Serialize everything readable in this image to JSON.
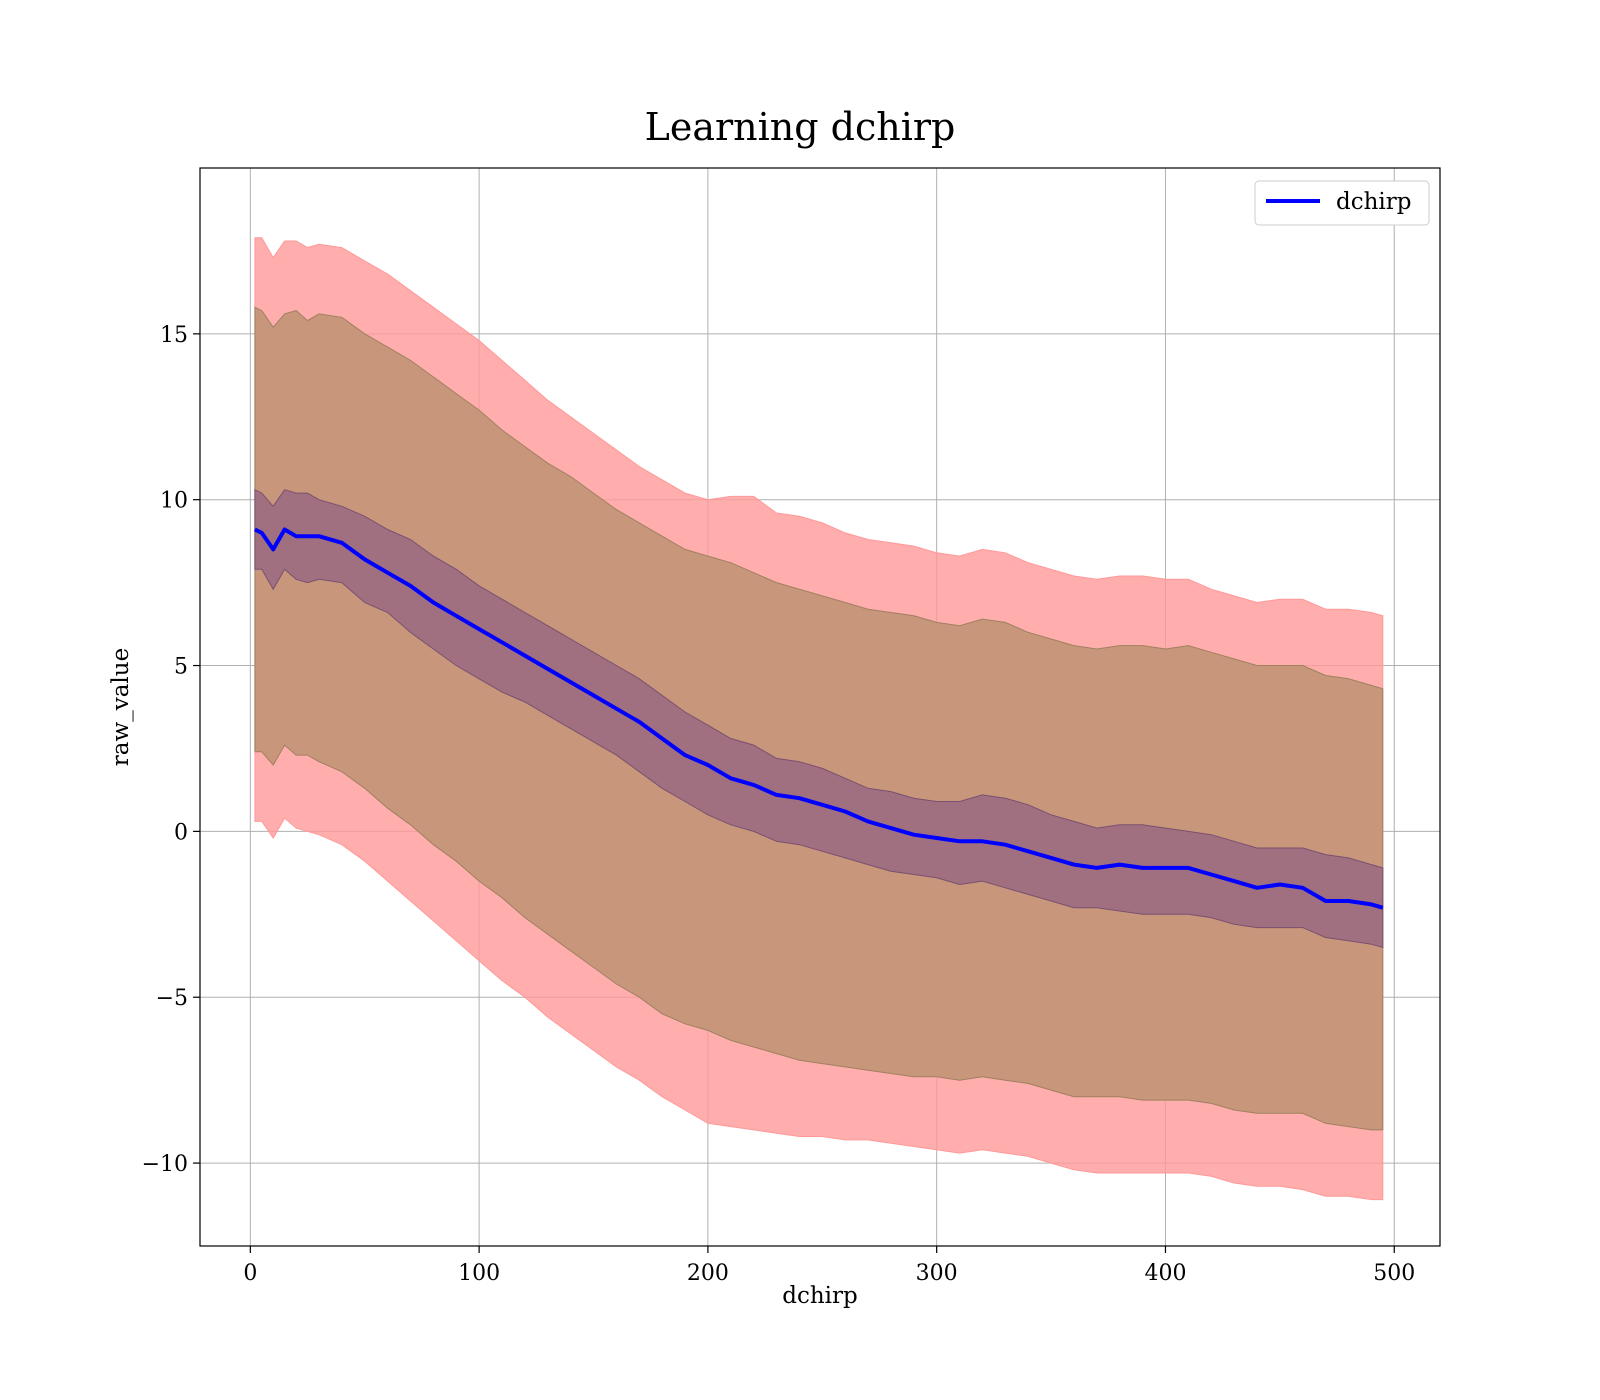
{
  "chart_data": {
    "type": "line",
    "title": "Learning dchirp",
    "xlabel": "dchirp",
    "ylabel": "raw_value",
    "xlim": [
      -22,
      520
    ],
    "ylim": [
      -12.5,
      20
    ],
    "xticks": [
      0,
      100,
      200,
      300,
      400,
      500
    ],
    "yticks": [
      -10,
      -5,
      0,
      5,
      10,
      15
    ],
    "ytick_labels": [
      "−10",
      "−5",
      "0",
      "5",
      "10",
      "15"
    ],
    "grid": true,
    "legend": {
      "placement": "top-right",
      "entries": [
        "dchirp"
      ]
    },
    "colors": {
      "line": "#0000ff",
      "band_outer": "#ff9999",
      "band_middle": "#c8967a",
      "band_inner": "#a07080"
    },
    "series": [
      {
        "name": "dchirp",
        "x": [
          2,
          5,
          10,
          15,
          20,
          25,
          30,
          40,
          50,
          60,
          70,
          80,
          90,
          100,
          110,
          120,
          130,
          140,
          150,
          160,
          170,
          180,
          190,
          200,
          210,
          220,
          230,
          240,
          250,
          260,
          270,
          280,
          290,
          300,
          310,
          320,
          330,
          340,
          350,
          360,
          370,
          380,
          390,
          400,
          410,
          420,
          430,
          440,
          450,
          460,
          470,
          480,
          490,
          495
        ],
        "values": [
          9.1,
          9.0,
          8.5,
          9.1,
          8.9,
          8.9,
          8.9,
          8.7,
          8.2,
          7.8,
          7.4,
          6.9,
          6.5,
          6.1,
          5.7,
          5.3,
          4.9,
          4.5,
          4.1,
          3.7,
          3.3,
          2.8,
          2.3,
          2.0,
          1.6,
          1.4,
          1.1,
          1.0,
          0.8,
          0.6,
          0.3,
          0.1,
          -0.1,
          -0.2,
          -0.3,
          -0.3,
          -0.4,
          -0.6,
          -0.8,
          -1.0,
          -1.1,
          -1.0,
          -1.1,
          -1.1,
          -1.1,
          -1.3,
          -1.5,
          -1.7,
          -1.6,
          -1.7,
          -2.1,
          -2.1,
          -2.2,
          -2.3
        ],
        "band_inner_upper": [
          10.3,
          10.2,
          9.8,
          10.3,
          10.2,
          10.2,
          10.0,
          9.8,
          9.5,
          9.1,
          8.8,
          8.3,
          7.9,
          7.4,
          7.0,
          6.6,
          6.2,
          5.8,
          5.4,
          5.0,
          4.6,
          4.1,
          3.6,
          3.2,
          2.8,
          2.6,
          2.2,
          2.1,
          1.9,
          1.6,
          1.3,
          1.2,
          1.0,
          0.9,
          0.9,
          1.1,
          1.0,
          0.8,
          0.5,
          0.3,
          0.1,
          0.2,
          0.2,
          0.1,
          0.0,
          -0.1,
          -0.3,
          -0.5,
          -0.5,
          -0.5,
          -0.7,
          -0.8,
          -1.0,
          -1.1
        ],
        "band_inner_lower": [
          7.9,
          7.9,
          7.3,
          7.9,
          7.6,
          7.5,
          7.6,
          7.5,
          6.9,
          6.6,
          6.0,
          5.5,
          5.0,
          4.6,
          4.2,
          3.9,
          3.5,
          3.1,
          2.7,
          2.3,
          1.8,
          1.3,
          0.9,
          0.5,
          0.2,
          0.0,
          -0.3,
          -0.4,
          -0.6,
          -0.8,
          -1.0,
          -1.2,
          -1.3,
          -1.4,
          -1.6,
          -1.5,
          -1.7,
          -1.9,
          -2.1,
          -2.3,
          -2.3,
          -2.4,
          -2.5,
          -2.5,
          -2.5,
          -2.6,
          -2.8,
          -2.9,
          -2.9,
          -2.9,
          -3.2,
          -3.3,
          -3.4,
          -3.5
        ],
        "band_middle_upper": [
          15.8,
          15.7,
          15.2,
          15.6,
          15.7,
          15.4,
          15.6,
          15.5,
          15.0,
          14.6,
          14.2,
          13.7,
          13.2,
          12.7,
          12.1,
          11.6,
          11.1,
          10.7,
          10.2,
          9.7,
          9.3,
          8.9,
          8.5,
          8.3,
          8.1,
          7.8,
          7.5,
          7.3,
          7.1,
          6.9,
          6.7,
          6.6,
          6.5,
          6.3,
          6.2,
          6.4,
          6.3,
          6.0,
          5.8,
          5.6,
          5.5,
          5.6,
          5.6,
          5.5,
          5.6,
          5.4,
          5.2,
          5.0,
          5.0,
          5.0,
          4.7,
          4.6,
          4.4,
          4.3
        ],
        "band_middle_lower": [
          2.4,
          2.4,
          2.0,
          2.6,
          2.3,
          2.3,
          2.1,
          1.8,
          1.3,
          0.7,
          0.2,
          -0.4,
          -0.9,
          -1.5,
          -2.0,
          -2.6,
          -3.1,
          -3.6,
          -4.1,
          -4.6,
          -5.0,
          -5.5,
          -5.8,
          -6.0,
          -6.3,
          -6.5,
          -6.7,
          -6.9,
          -7.0,
          -7.1,
          -7.2,
          -7.3,
          -7.4,
          -7.4,
          -7.5,
          -7.4,
          -7.5,
          -7.6,
          -7.8,
          -8.0,
          -8.0,
          -8.0,
          -8.1,
          -8.1,
          -8.1,
          -8.2,
          -8.4,
          -8.5,
          -8.5,
          -8.5,
          -8.8,
          -8.9,
          -9.0,
          -9.0
        ],
        "band_outer_upper": [
          17.9,
          17.9,
          17.3,
          17.8,
          17.8,
          17.6,
          17.7,
          17.6,
          17.2,
          16.8,
          16.3,
          15.8,
          15.3,
          14.8,
          14.2,
          13.6,
          13.0,
          12.5,
          12.0,
          11.5,
          11.0,
          10.6,
          10.2,
          10.0,
          10.1,
          10.1,
          9.6,
          9.5,
          9.3,
          9.0,
          8.8,
          8.7,
          8.6,
          8.4,
          8.3,
          8.5,
          8.4,
          8.1,
          7.9,
          7.7,
          7.6,
          7.7,
          7.7,
          7.6,
          7.6,
          7.3,
          7.1,
          6.9,
          7.0,
          7.0,
          6.7,
          6.7,
          6.6,
          6.5
        ],
        "band_outer_lower": [
          0.3,
          0.3,
          -0.2,
          0.4,
          0.1,
          0.0,
          -0.1,
          -0.4,
          -0.9,
          -1.5,
          -2.1,
          -2.7,
          -3.3,
          -3.9,
          -4.5,
          -5.0,
          -5.6,
          -6.1,
          -6.6,
          -7.1,
          -7.5,
          -8.0,
          -8.4,
          -8.8,
          -8.9,
          -9.0,
          -9.1,
          -9.2,
          -9.2,
          -9.3,
          -9.3,
          -9.4,
          -9.5,
          -9.6,
          -9.7,
          -9.6,
          -9.7,
          -9.8,
          -10.0,
          -10.2,
          -10.3,
          -10.3,
          -10.3,
          -10.3,
          -10.3,
          -10.4,
          -10.6,
          -10.7,
          -10.7,
          -10.8,
          -11.0,
          -11.0,
          -11.1,
          -11.1
        ]
      }
    ]
  }
}
